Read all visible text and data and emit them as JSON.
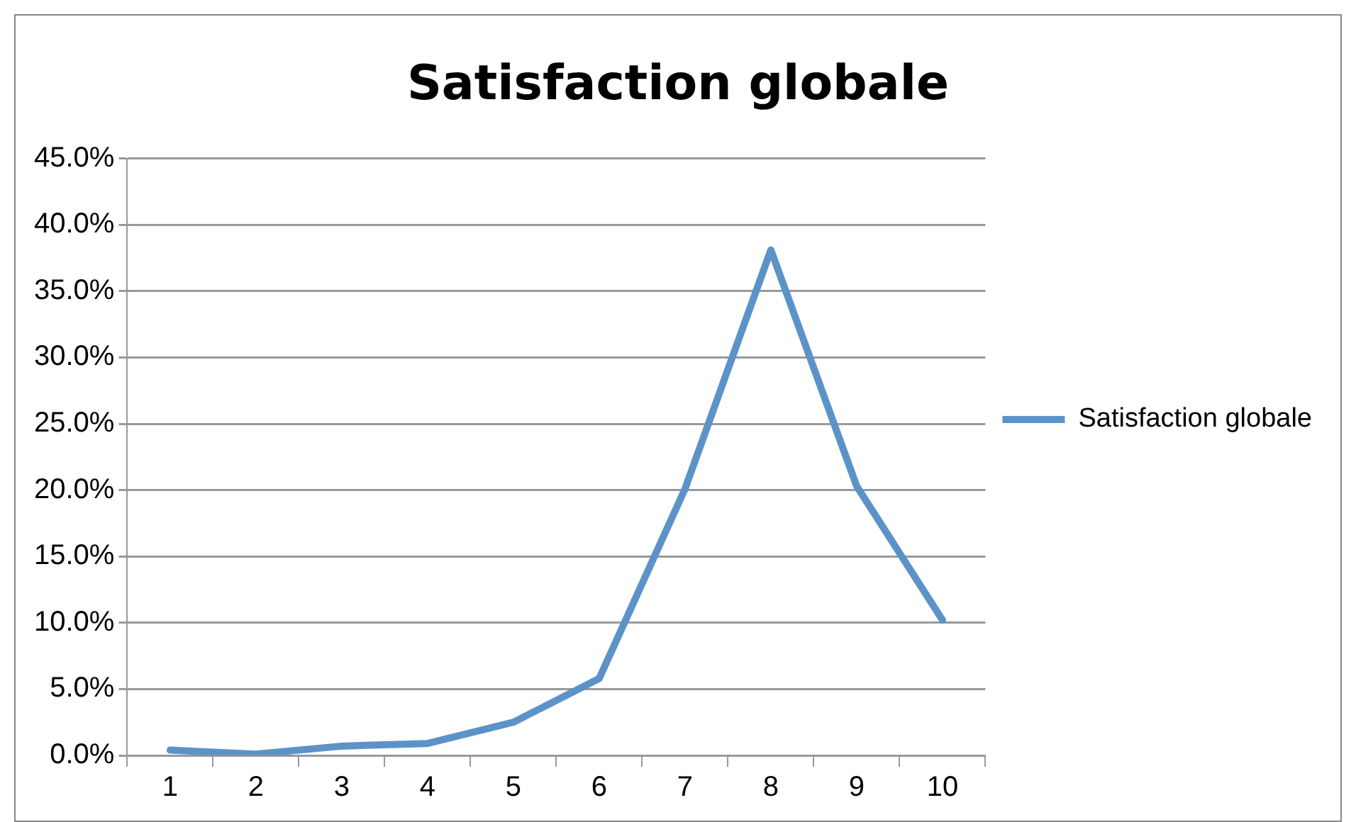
{
  "chart_data": {
    "type": "line",
    "title": "Satisfaction globale",
    "categories": [
      "1",
      "2",
      "3",
      "4",
      "5",
      "6",
      "7",
      "8",
      "9",
      "10"
    ],
    "series": [
      {
        "name": "Satisfaction globale",
        "color": "#5b93c9",
        "values": [
          0.4,
          0.1,
          0.7,
          0.9,
          2.5,
          5.8,
          20.1,
          38.1,
          20.3,
          10.2
        ]
      }
    ],
    "ylim": [
      0,
      45
    ],
    "yticks": [
      {
        "value": 0,
        "label": "0.0%"
      },
      {
        "value": 5,
        "label": "5.0%"
      },
      {
        "value": 10,
        "label": "10.0%"
      },
      {
        "value": 15,
        "label": "15.0%"
      },
      {
        "value": 20,
        "label": "20.0%"
      },
      {
        "value": 25,
        "label": "25.0%"
      },
      {
        "value": 30,
        "label": "30.0%"
      },
      {
        "value": 35,
        "label": "35.0%"
      },
      {
        "value": 40,
        "label": "40.0%"
      },
      {
        "value": 45,
        "label": "45.0%"
      }
    ],
    "grid": "y",
    "legend": "right",
    "marker": "none",
    "line_style": "solid"
  }
}
